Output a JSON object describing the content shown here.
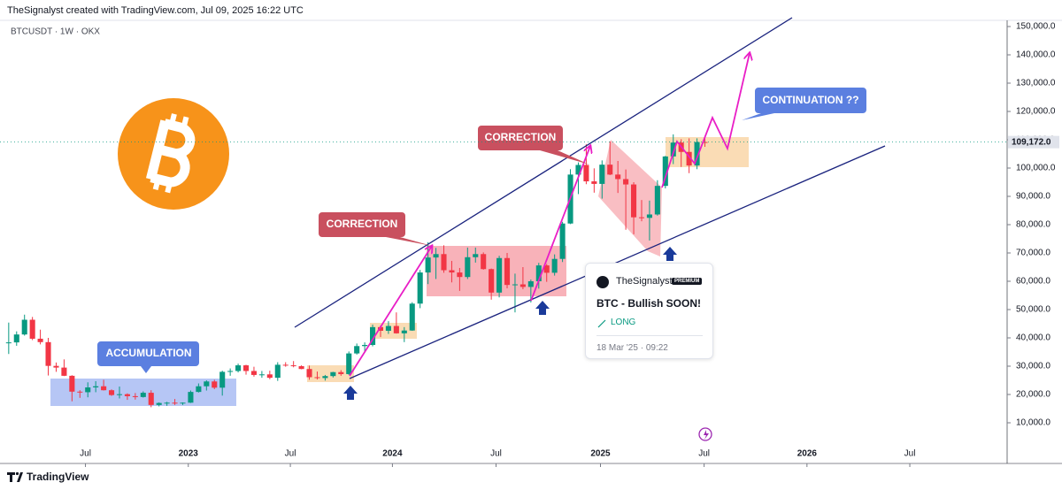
{
  "header": {
    "credit": "TheSignalyst created with TradingView.com, Jul 09, 2025 16:22 UTC",
    "symbol": "BTCUSDT · 1W · OKX"
  },
  "chart_data": {
    "type": "candlestick",
    "up_color": "#089981",
    "down_color": "#f23645",
    "open": [
      38300,
      38400,
      41200,
      46400,
      39700,
      38500,
      30100,
      29500,
      26600,
      21000,
      20800,
      22500,
      22900,
      21500,
      19800,
      20100,
      19400,
      19100,
      20600,
      16300,
      17000,
      17100,
      16800,
      17100,
      20900,
      22900,
      24600,
      22400,
      28000,
      28300,
      30300,
      28300,
      26900,
      27100,
      25900,
      30500,
      30300,
      30000,
      29000,
      26100,
      25800,
      26500,
      27900,
      27200,
      34500,
      37100,
      37500,
      43800,
      42500,
      44200,
      41600,
      42600,
      52100,
      63100,
      68400,
      69600,
      63900,
      63100,
      61500,
      68500,
      69600,
      64300,
      56000,
      68200,
      58700,
      58900,
      58000,
      60000,
      65600,
      63000,
      67900,
      80400,
      97700,
      101100,
      95300,
      94400,
      101200,
      97700,
      96100,
      94200,
      82600,
      82400,
      83600,
      93700,
      104100,
      109000,
      105700,
      100900,
      109200
    ],
    "high": [
      45400,
      42300,
      48200,
      47400,
      42900,
      40000,
      31300,
      32400,
      26800,
      21500,
      24300,
      24700,
      25200,
      21800,
      22800,
      20400,
      20500,
      21100,
      21500,
      17200,
      17400,
      18400,
      17200,
      21400,
      23900,
      25000,
      25200,
      28400,
      29200,
      30900,
      30500,
      29800,
      28300,
      28400,
      31400,
      31400,
      31800,
      30300,
      30200,
      28100,
      26900,
      28000,
      28600,
      35200,
      38000,
      38400,
      44700,
      44400,
      45900,
      49000,
      43800,
      52600,
      64000,
      73800,
      71800,
      72700,
      67200,
      64700,
      71900,
      71900,
      70200,
      64500,
      69000,
      70000,
      62700,
      65000,
      60600,
      66500,
      66100,
      69500,
      81000,
      99600,
      102000,
      108400,
      99900,
      102700,
      109400,
      102500,
      99500,
      95000,
      88700,
      88500,
      95700,
      104300,
      111900,
      110200,
      110500,
      110500,
      111000
    ],
    "low": [
      34300,
      37200,
      40800,
      39200,
      37700,
      26700,
      28000,
      26500,
      17600,
      18800,
      19000,
      20800,
      21400,
      19500,
      18600,
      18100,
      18200,
      18900,
      15500,
      15800,
      16000,
      16300,
      16300,
      17000,
      20700,
      21400,
      21900,
      19600,
      26600,
      27800,
      27000,
      26300,
      25900,
      25400,
      24800,
      29800,
      29600,
      28900,
      25200,
      25300,
      24900,
      26000,
      26600,
      26900,
      34100,
      35000,
      37000,
      40300,
      41400,
      41500,
      38500,
      42500,
      50500,
      59000,
      60800,
      63000,
      59600,
      56600,
      60800,
      66600,
      64100,
      53500,
      54300,
      57500,
      49000,
      57200,
      52500,
      57400,
      59800,
      62000,
      66800,
      80200,
      90800,
      94300,
      91300,
      89200,
      97500,
      91200,
      78200,
      76600,
      81200,
      74400,
      83200,
      92800,
      101400,
      100400,
      98200,
      99600,
      107500
    ],
    "close": [
      38400,
      41200,
      46400,
      39700,
      38500,
      30100,
      29500,
      26600,
      21000,
      20800,
      22500,
      22900,
      21500,
      19800,
      20100,
      19400,
      19100,
      20600,
      16300,
      17000,
      17100,
      16800,
      17100,
      20900,
      22900,
      24600,
      22400,
      28000,
      28300,
      30300,
      28300,
      26900,
      27100,
      25900,
      30500,
      30300,
      30000,
      29000,
      26100,
      25800,
      26500,
      27900,
      27200,
      34500,
      37100,
      37500,
      43800,
      42500,
      44200,
      41600,
      42600,
      52100,
      63100,
      68400,
      69600,
      63900,
      63100,
      61500,
      68500,
      69600,
      64300,
      56000,
      68200,
      58700,
      58900,
      58000,
      60000,
      65600,
      63000,
      67900,
      80400,
      97700,
      101100,
      95300,
      94400,
      101200,
      97700,
      96100,
      94200,
      82600,
      82400,
      83600,
      93700,
      104100,
      109000,
      105700,
      100900,
      109200,
      109172
    ],
    "current_price": {
      "value": 109172,
      "label": "109,172.0"
    },
    "xlim": [
      -1.1,
      126.2
    ],
    "xticks": [
      {
        "value": 9.7,
        "label": "Jul"
      },
      {
        "value": 22.7,
        "label": "2023"
      },
      {
        "value": 35.6,
        "label": "Jul"
      },
      {
        "value": 48.5,
        "label": "2024"
      },
      {
        "value": 61.6,
        "label": "Jul"
      },
      {
        "value": 74.8,
        "label": "2025"
      },
      {
        "value": 87.9,
        "label": "Jul"
      },
      {
        "value": 100.9,
        "label": "2026"
      },
      {
        "value": 113.9,
        "label": "Jul"
      }
    ],
    "ylim": [
      -3750,
      153750
    ],
    "yticks": [
      {
        "value": 150000,
        "label": "150,000.0"
      },
      {
        "value": 140000,
        "label": "140,000.0"
      },
      {
        "value": 130000,
        "label": "130,000.0"
      },
      {
        "value": 120000,
        "label": "120,000.0"
      },
      {
        "value": 110000,
        "label": "110,000.0"
      },
      {
        "value": 100000,
        "label": "100,000.0"
      },
      {
        "value": 90000,
        "label": "90,000.0"
      },
      {
        "value": 80000,
        "label": "80,000.0"
      },
      {
        "value": 70000,
        "label": "70,000.0"
      },
      {
        "value": 60000,
        "label": "60,000.0"
      },
      {
        "value": 50000,
        "label": "50,000.0"
      },
      {
        "value": 40000,
        "label": "40,000.0"
      },
      {
        "value": 30000,
        "label": "30,000.0"
      },
      {
        "value": 20000,
        "label": "20,000.0"
      },
      {
        "value": 10000,
        "label": "10,000.0"
      }
    ]
  },
  "annotations": {
    "accumulation": "ACCUMULATION",
    "correction_1": "CORRECTION",
    "correction_2": "CORRECTION",
    "continuation": "CONTINUATION ??"
  },
  "card": {
    "author": "TheSignalyst",
    "badge": "PREMIUM",
    "title": "BTC - Bullish SOON!",
    "direction": "LONG",
    "date": "18 Mar '25 · 09:22"
  },
  "footer": {
    "brand": "TradingView"
  }
}
